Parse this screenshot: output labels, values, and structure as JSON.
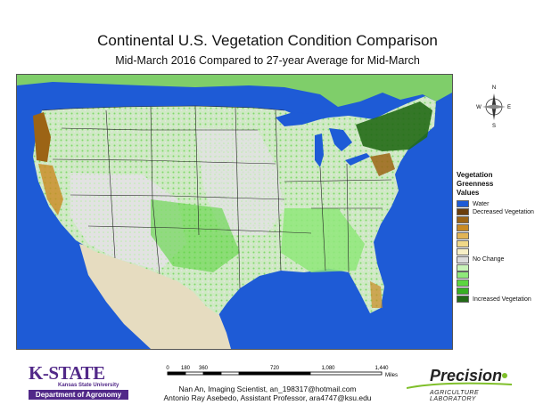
{
  "title": "Continental U.S. Vegetation Condition Comparison",
  "subtitle": "Mid-March 2016 Compared to 27-year Average for Mid-March",
  "compass": {
    "n": "N",
    "s": "S",
    "e": "E",
    "w": "W"
  },
  "legend": {
    "title_line1": "Vegetation",
    "title_line2": "Greenness",
    "title_line3": "Values",
    "items": [
      {
        "label": "Water",
        "color": "#1e5bd6"
      },
      {
        "label": "Decreased Vegetation",
        "color": "#6b3e0c"
      },
      {
        "label": "",
        "color": "#9c6415"
      },
      {
        "label": "",
        "color": "#c98a22"
      },
      {
        "label": "",
        "color": "#e1b456"
      },
      {
        "label": "",
        "color": "#f0d888"
      },
      {
        "label": "",
        "color": "#f7efc6"
      },
      {
        "label": "No Change",
        "color": "#dcdcdc"
      },
      {
        "label": "",
        "color": "#c8f2b8"
      },
      {
        "label": "",
        "color": "#8fe87a"
      },
      {
        "label": "",
        "color": "#5cd63f"
      },
      {
        "label": "",
        "color": "#37b022"
      },
      {
        "label": "Increased Vegetation",
        "color": "#226a16"
      }
    ]
  },
  "scale": {
    "ticks": [
      "0",
      "180",
      "360",
      "720",
      "1,080",
      "1,440"
    ],
    "unit": "Miles"
  },
  "logos": {
    "ksu_name": "K-STATE",
    "ksu_sub": "Kansas State University",
    "ksu_dept": "Department of Agronomy",
    "precision_word": "Precision",
    "precision_sub": "AGRICULTURE LABORATORY"
  },
  "credits": {
    "line1": "Nan An, Imaging Scientist, an_198317@hotmail.com",
    "line2": "Antonio Ray Asebedo, Assistant Professor, ara4747@ksu.edu"
  }
}
